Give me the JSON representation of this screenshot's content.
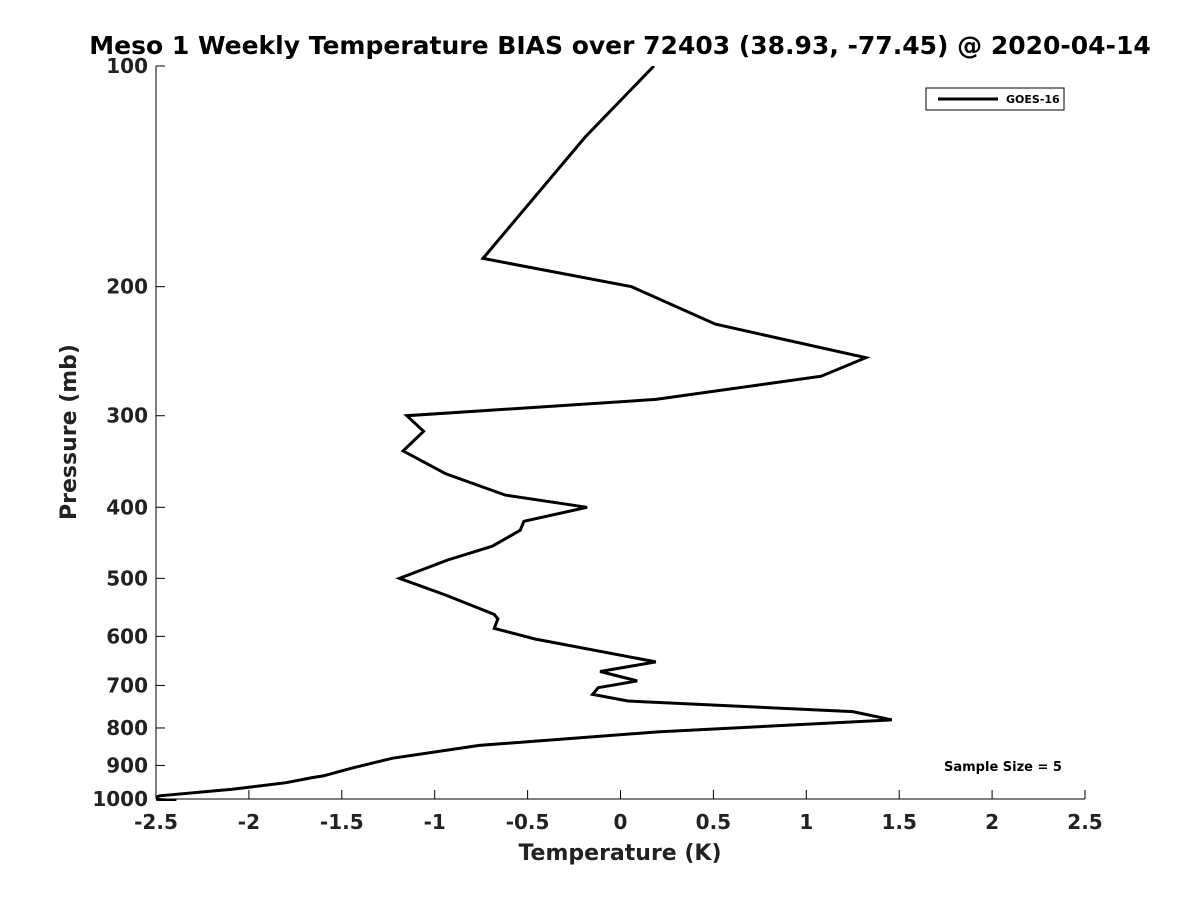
{
  "chart_data": {
    "type": "line",
    "title": "Meso 1 Weekly Temperature BIAS over 72403 (38.93, -77.45) @ 2020-04-14",
    "xlabel": "Temperature (K)",
    "ylabel": "Pressure (mb)",
    "xlim": [
      -2.5,
      2.5
    ],
    "ylim": [
      100,
      1000
    ],
    "yscale": "log",
    "y_reversed": true,
    "grid": false,
    "x_ticks": [
      -2.5,
      -2,
      -1.5,
      -1,
      -0.5,
      0,
      0.5,
      1,
      1.5,
      2,
      2.5
    ],
    "x_tick_labels": [
      "-2.5",
      "-2",
      "-1.5",
      "-1",
      "-0.5",
      "0",
      "0.5",
      "1",
      "1.5",
      "2",
      "2.5"
    ],
    "y_ticks": [
      100,
      200,
      300,
      400,
      500,
      600,
      700,
      800,
      900,
      1000
    ],
    "y_tick_labels": [
      "100",
      "200",
      "300",
      "400",
      "500",
      "600",
      "700",
      "800",
      "900",
      "1000"
    ],
    "legend": {
      "position": "top-right",
      "entries": [
        "GOES-16"
      ]
    },
    "annotation": "Sample Size = 5",
    "series": [
      {
        "name": "GOES-16",
        "color": "#000000",
        "x": [
          0.18,
          -0.19,
          -0.74,
          0.06,
          0.51,
          1.32,
          1.08,
          0.19,
          -1.15,
          -1.06,
          -1.17,
          -0.94,
          -0.62,
          -0.18,
          -0.52,
          -0.54,
          -0.69,
          -0.93,
          -1.19,
          -0.94,
          -0.68,
          -0.66,
          -0.68,
          -0.46,
          0.19,
          -0.11,
          0.09,
          -0.12,
          -0.15,
          0.04,
          1.25,
          1.46,
          0.2,
          -0.76,
          -1.23,
          -1.45,
          -1.6,
          -1.66,
          -1.8,
          -2.09,
          -2.48,
          -2.52,
          -2.39
        ],
        "y": [
          100,
          125,
          183,
          200,
          225,
          250,
          265,
          285,
          300,
          315,
          335,
          360,
          385,
          400,
          418,
          430,
          452,
          472,
          500,
          527,
          560,
          568,
          585,
          605,
          650,
          670,
          690,
          705,
          720,
          735,
          760,
          780,
          810,
          845,
          880,
          908,
          930,
          935,
          950,
          970,
          990,
          1000,
          1005
        ]
      }
    ]
  }
}
